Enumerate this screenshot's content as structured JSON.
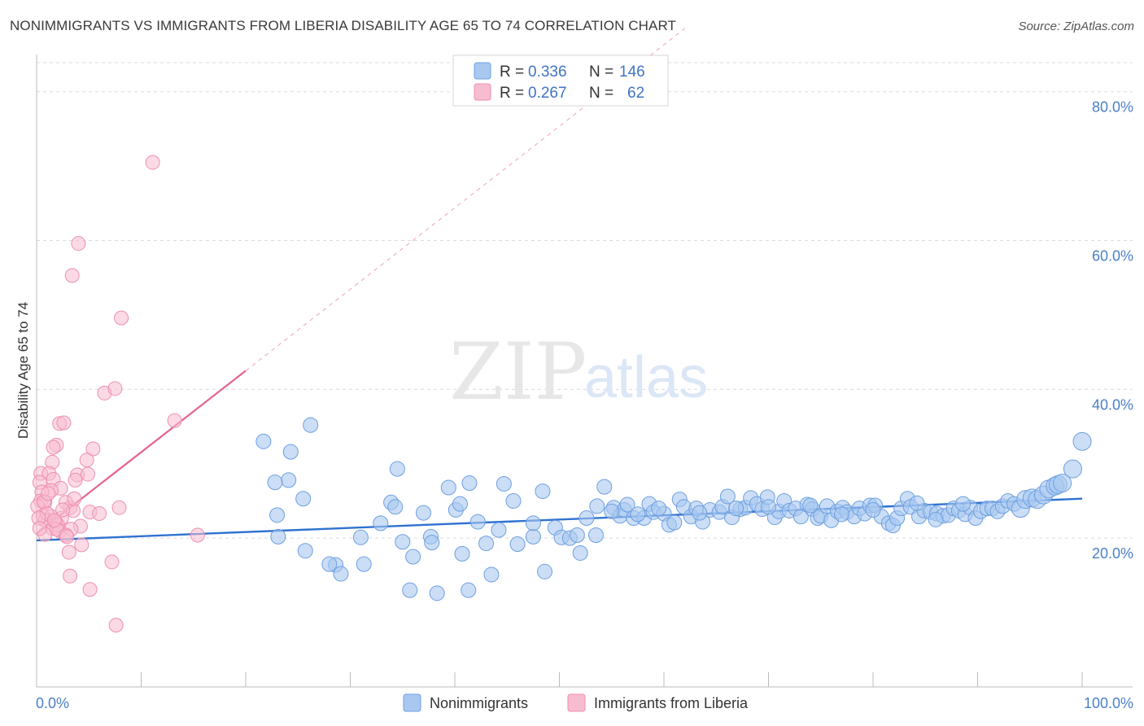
{
  "title": "NONIMMIGRANTS VS IMMIGRANTS FROM LIBERIA DISABILITY AGE 65 TO 74 CORRELATION CHART",
  "source": "Source: ZipAtlas.com",
  "watermark": {
    "zip": "ZIP",
    "atlas": "atlas"
  },
  "legend": {
    "r_label": "R =",
    "n_label": "N =",
    "rows": [
      {
        "r": "0.336",
        "n": "146",
        "color": "#9dc0ee"
      },
      {
        "r": "0.267",
        "n": "62",
        "color": "#f5afc4"
      }
    ]
  },
  "bottom_legend": [
    {
      "label": "Nonimmigrants",
      "color": "#9dc0ee"
    },
    {
      "label": "Immigrants from Liberia",
      "color": "#f5afc4"
    }
  ],
  "colors": {
    "blue_fill": "#a8c8f0",
    "blue_stroke": "#6d9fe0",
    "blue_line": "#2f72d0",
    "pink_fill": "#f7bccf",
    "pink_stroke": "#ee8fad",
    "pink_line": "#e5638d",
    "grid": "#d9d9d9",
    "axis": "#bbbbbb"
  },
  "chart_data": {
    "type": "scatter",
    "title": "NONIMMIGRANTS VS IMMIGRANTS FROM LIBERIA DISABILITY AGE 65 TO 74 CORRELATION CHART",
    "xlabel": "",
    "ylabel": "Disability Age 65 to 74",
    "xlim": [
      0,
      100
    ],
    "ylim": [
      0,
      85
    ],
    "x_tick_labels": [
      {
        "value": 0,
        "label": "0.0%"
      },
      {
        "value": 100,
        "label": "100.0%"
      }
    ],
    "y_tick_labels": [
      {
        "value": 20,
        "label": "20.0%"
      },
      {
        "value": 40,
        "label": "40.0%"
      },
      {
        "value": 60,
        "label": "60.0%"
      },
      {
        "value": 80,
        "label": "80.0%"
      }
    ],
    "grid": true,
    "legend_position": "top-center",
    "series": [
      {
        "name": "Nonimmigrants",
        "color": "#9dc0ee",
        "trend": {
          "x0": 0,
          "y0": 19.7,
          "x1": 100,
          "y1": 25.3
        },
        "points": [
          [
            21.7,
            33.0
          ],
          [
            26.2,
            35.2
          ],
          [
            24.3,
            31.6
          ],
          [
            24.1,
            27.8
          ],
          [
            22.8,
            27.5
          ],
          [
            25.5,
            25.3
          ],
          [
            23.0,
            23.1
          ],
          [
            25.7,
            18.3
          ],
          [
            28.6,
            16.4
          ],
          [
            23.1,
            20.2
          ],
          [
            28.0,
            16.5
          ],
          [
            29.1,
            15.2
          ],
          [
            31.3,
            16.5
          ],
          [
            31.0,
            20.1
          ],
          [
            34.5,
            29.3
          ],
          [
            33.9,
            24.8
          ],
          [
            32.9,
            22.0
          ],
          [
            34.3,
            24.2
          ],
          [
            35.0,
            19.5
          ],
          [
            36.0,
            17.5
          ],
          [
            35.7,
            13.0
          ],
          [
            37.0,
            23.4
          ],
          [
            37.7,
            20.2
          ],
          [
            37.8,
            19.4
          ],
          [
            38.3,
            12.6
          ],
          [
            40.1,
            23.8
          ],
          [
            40.5,
            24.6
          ],
          [
            41.4,
            27.4
          ],
          [
            40.7,
            17.9
          ],
          [
            41.3,
            13.0
          ],
          [
            39.4,
            26.8
          ],
          [
            42.2,
            22.2
          ],
          [
            43.0,
            19.3
          ],
          [
            43.5,
            15.1
          ],
          [
            44.2,
            21.1
          ],
          [
            44.7,
            27.3
          ],
          [
            46.0,
            19.2
          ],
          [
            45.6,
            25.0
          ],
          [
            47.5,
            20.2
          ],
          [
            48.6,
            15.5
          ],
          [
            47.5,
            22.0
          ],
          [
            48.4,
            26.3
          ],
          [
            49.6,
            21.4
          ],
          [
            50.2,
            20.1
          ],
          [
            51.0,
            20.0
          ],
          [
            51.7,
            20.4
          ],
          [
            52.0,
            18.0
          ],
          [
            52.6,
            22.7
          ],
          [
            53.5,
            20.4
          ],
          [
            53.6,
            24.3
          ],
          [
            54.3,
            26.9
          ],
          [
            55.2,
            24.1
          ],
          [
            55.8,
            23.0
          ],
          [
            56.2,
            23.8
          ],
          [
            56.5,
            24.5
          ],
          [
            57.1,
            22.7
          ],
          [
            58.1,
            22.7
          ],
          [
            58.6,
            24.6
          ],
          [
            59.0,
            23.5
          ],
          [
            60.0,
            23.3
          ],
          [
            60.5,
            21.8
          ],
          [
            61.0,
            22.1
          ],
          [
            61.5,
            25.2
          ],
          [
            61.9,
            24.2
          ],
          [
            62.6,
            22.9
          ],
          [
            63.1,
            24.0
          ],
          [
            63.7,
            22.2
          ],
          [
            64.4,
            23.8
          ],
          [
            65.3,
            23.5
          ],
          [
            65.6,
            24.2
          ],
          [
            66.1,
            25.6
          ],
          [
            66.5,
            22.8
          ],
          [
            67.3,
            23.9
          ],
          [
            67.8,
            24.1
          ],
          [
            68.3,
            25.4
          ],
          [
            68.9,
            24.6
          ],
          [
            69.4,
            23.9
          ],
          [
            69.9,
            25.5
          ],
          [
            70.6,
            22.8
          ],
          [
            71.0,
            23.6
          ],
          [
            71.5,
            25.0
          ],
          [
            72.0,
            23.7
          ],
          [
            72.6,
            24.0
          ],
          [
            73.1,
            22.9
          ],
          [
            73.7,
            24.5
          ],
          [
            74.2,
            23.9
          ],
          [
            74.7,
            22.7
          ],
          [
            75.0,
            23.0
          ],
          [
            75.6,
            24.3
          ],
          [
            76.0,
            22.4
          ],
          [
            76.6,
            23.6
          ],
          [
            77.1,
            24.1
          ],
          [
            77.5,
            23.5
          ],
          [
            78.2,
            22.9
          ],
          [
            78.7,
            24.0
          ],
          [
            79.2,
            23.3
          ],
          [
            79.7,
            24.4
          ],
          [
            80.2,
            24.4
          ],
          [
            80.8,
            22.9
          ],
          [
            81.5,
            22.0
          ],
          [
            81.9,
            21.7
          ],
          [
            82.3,
            22.7
          ],
          [
            82.7,
            24.0
          ],
          [
            83.3,
            25.3
          ],
          [
            83.6,
            24.2
          ],
          [
            84.4,
            22.9
          ],
          [
            84.9,
            23.7
          ],
          [
            85.5,
            23.5
          ],
          [
            86.1,
            23.3
          ],
          [
            86.7,
            23.0
          ],
          [
            87.2,
            23.1
          ],
          [
            87.7,
            24.0
          ],
          [
            88.2,
            23.7
          ],
          [
            88.8,
            23.2
          ],
          [
            89.3,
            24.1
          ],
          [
            89.8,
            22.7
          ],
          [
            90.3,
            23.6
          ],
          [
            90.9,
            24.0
          ],
          [
            91.4,
            24.0
          ],
          [
            91.9,
            23.6
          ],
          [
            92.4,
            24.3
          ],
          [
            92.9,
            25.0
          ],
          [
            93.5,
            24.6
          ],
          [
            94.1,
            24.0
          ],
          [
            94.6,
            25.2
          ],
          [
            95.2,
            25.4
          ],
          [
            95.7,
            25.2
          ],
          [
            96.3,
            25.8
          ],
          [
            96.8,
            26.6
          ],
          [
            97.4,
            27.0
          ],
          [
            97.7,
            27.2
          ],
          [
            98.1,
            27.4
          ],
          [
            99.1,
            29.3
          ],
          [
            100.0,
            33.0
          ],
          [
            88.6,
            24.6
          ],
          [
            86.0,
            22.5
          ],
          [
            84.2,
            24.7
          ],
          [
            80.0,
            23.8
          ],
          [
            77.0,
            23.2
          ],
          [
            74.0,
            24.4
          ],
          [
            70.0,
            24.2
          ],
          [
            66.9,
            24.0
          ],
          [
            63.4,
            23.4
          ],
          [
            59.5,
            24.0
          ],
          [
            57.5,
            23.2
          ],
          [
            55.0,
            23.6
          ]
        ]
      },
      {
        "name": "Immigrants from Liberia",
        "color": "#f5afc4",
        "trend": {
          "x0": 0,
          "y0": 20.6,
          "x1": 20,
          "y1": 42.5
        },
        "trend_extension": {
          "x0": 20,
          "y0": 42.5,
          "x1": 62,
          "y1": 88.5
        },
        "points": [
          [
            11.1,
            70.5
          ],
          [
            4.0,
            59.6
          ],
          [
            3.4,
            55.3
          ],
          [
            8.1,
            49.6
          ],
          [
            6.5,
            39.5
          ],
          [
            7.5,
            40.1
          ],
          [
            13.2,
            35.8
          ],
          [
            2.2,
            35.4
          ],
          [
            2.6,
            35.5
          ],
          [
            1.9,
            32.5
          ],
          [
            1.6,
            32.2
          ],
          [
            5.4,
            32.0
          ],
          [
            4.8,
            30.5
          ],
          [
            1.5,
            30.2
          ],
          [
            0.4,
            28.7
          ],
          [
            1.2,
            28.7
          ],
          [
            3.9,
            28.5
          ],
          [
            4.9,
            28.6
          ],
          [
            1.6,
            27.9
          ],
          [
            0.3,
            27.5
          ],
          [
            3.7,
            27.8
          ],
          [
            2.3,
            26.7
          ],
          [
            1.4,
            26.4
          ],
          [
            0.5,
            26.2
          ],
          [
            3.2,
            24.1
          ],
          [
            0.4,
            25.0
          ],
          [
            0.8,
            24.8
          ],
          [
            0.1,
            24.3
          ],
          [
            7.9,
            24.1
          ],
          [
            2.8,
            24.8
          ],
          [
            3.5,
            23.7
          ],
          [
            5.1,
            23.5
          ],
          [
            6.0,
            23.3
          ],
          [
            0.6,
            23.0
          ],
          [
            1.4,
            22.9
          ],
          [
            2.4,
            22.7
          ],
          [
            0.8,
            22.4
          ],
          [
            1.8,
            22.2
          ],
          [
            1.5,
            21.3
          ],
          [
            2.0,
            21.8
          ],
          [
            4.2,
            21.6
          ],
          [
            2.2,
            21.0
          ],
          [
            1.9,
            21.2
          ],
          [
            3.3,
            21.2
          ],
          [
            0.8,
            20.5
          ],
          [
            2.8,
            20.4
          ],
          [
            15.4,
            20.4
          ],
          [
            4.3,
            19.1
          ],
          [
            3.1,
            18.1
          ],
          [
            7.2,
            16.8
          ],
          [
            3.2,
            14.9
          ],
          [
            5.1,
            13.1
          ],
          [
            7.6,
            8.3
          ],
          [
            0.7,
            24.9
          ],
          [
            1.0,
            23.3
          ],
          [
            0.2,
            22.7
          ],
          [
            1.7,
            22.4
          ],
          [
            2.5,
            23.8
          ],
          [
            0.3,
            21.3
          ],
          [
            2.9,
            20.2
          ],
          [
            1.1,
            26.0
          ],
          [
            3.6,
            25.3
          ]
        ]
      }
    ]
  }
}
